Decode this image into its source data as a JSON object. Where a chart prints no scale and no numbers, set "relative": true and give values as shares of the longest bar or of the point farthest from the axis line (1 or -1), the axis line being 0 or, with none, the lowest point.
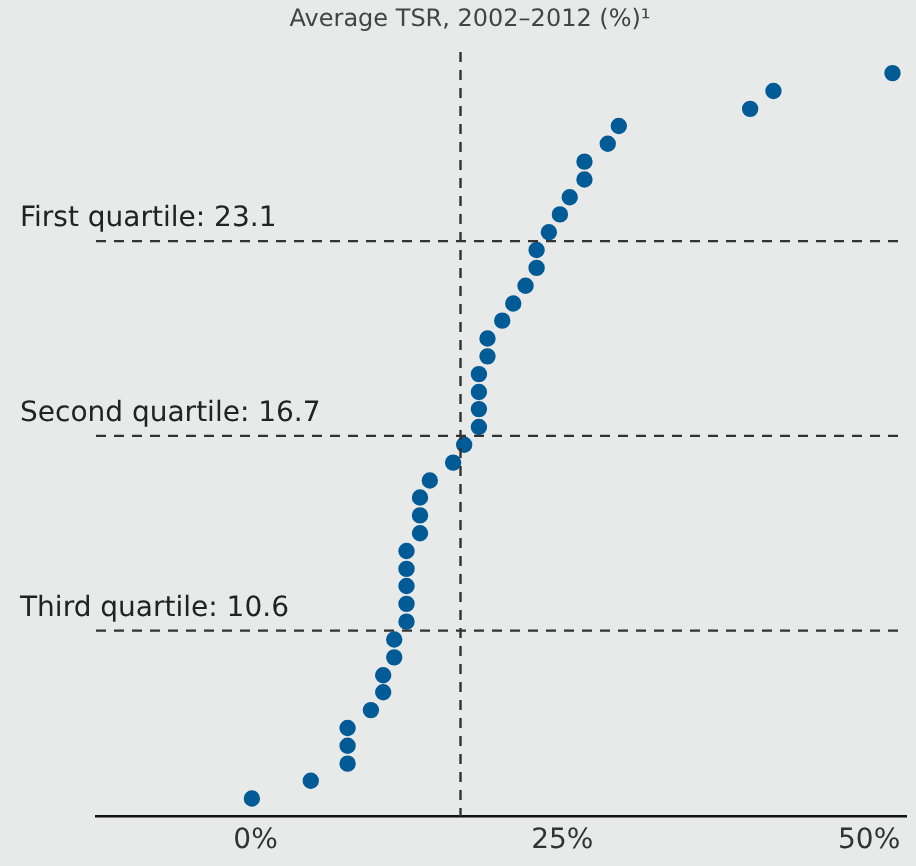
{
  "chart_data": {
    "type": "scatter",
    "relative": true,
    "title": "Average TSR, 2002–2012 (%)¹",
    "x": [
      -0.3,
      4.5,
      7.5,
      7.5,
      7.5,
      9.4,
      10.4,
      10.4,
      11.3,
      11.3,
      12.3,
      12.3,
      12.3,
      12.3,
      12.3,
      13.4,
      13.4,
      13.4,
      14.2,
      16.1,
      17.0,
      18.2,
      18.2,
      18.2,
      18.2,
      18.9,
      18.9,
      20.1,
      21.0,
      22.0,
      22.9,
      22.9,
      23.9,
      24.8,
      25.6,
      26.8,
      26.8,
      28.7,
      29.6,
      40.3,
      42.2,
      51.9
    ],
    "values": [
      0.024,
      0.048,
      0.071,
      0.095,
      0.119,
      0.143,
      0.167,
      0.19,
      0.214,
      0.238,
      0.262,
      0.286,
      0.31,
      0.333,
      0.357,
      0.381,
      0.405,
      0.429,
      0.452,
      0.476,
      0.5,
      0.524,
      0.548,
      0.571,
      0.595,
      0.619,
      0.643,
      0.667,
      0.69,
      0.714,
      0.738,
      0.762,
      0.786,
      0.81,
      0.833,
      0.857,
      0.881,
      0.905,
      0.929,
      0.952,
      0.976,
      1
    ],
    "color": "#005b96",
    "marker": "circle",
    "xlim": [
      -13,
      53
    ],
    "xticks": [
      {
        "value": 0,
        "label": "0%"
      },
      {
        "value": 25,
        "label": "25%"
      },
      {
        "value": 50,
        "label": "50%"
      }
    ],
    "tick_labels": "x",
    "grid": false,
    "legend": false,
    "ref_lines": [
      {
        "axis": "y",
        "value": 0.774,
        "line_style": "dashed"
      },
      {
        "axis": "y",
        "value": 0.512,
        "line_style": "dashed"
      },
      {
        "axis": "y",
        "value": 0.25,
        "line_style": "dashed"
      },
      {
        "axis": "x",
        "value": 16.7,
        "line_style": "dashed"
      }
    ],
    "annotations": [
      "First quartile: 23.1",
      "Second quartile: 16.7",
      "Third quartile: 10.6"
    ]
  }
}
